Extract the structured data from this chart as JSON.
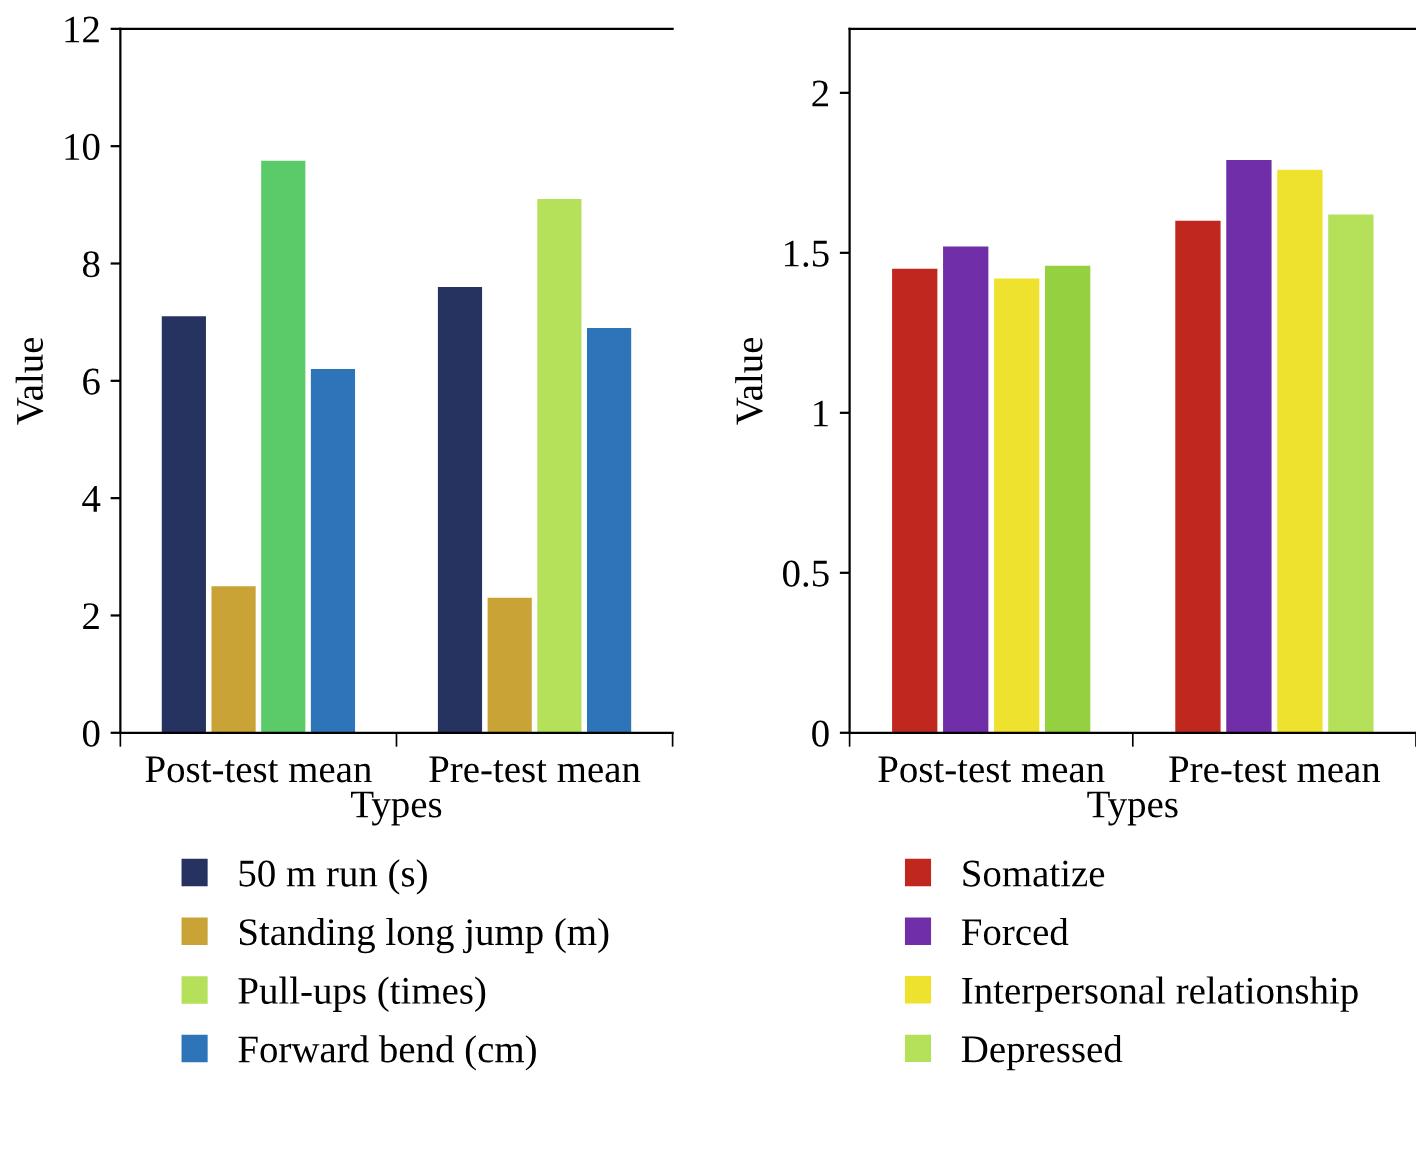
{
  "chart_data": [
    {
      "type": "bar",
      "xlabel": "Types",
      "ylabel": "Value",
      "categories": [
        "Post-test mean",
        "Pre-test mean"
      ],
      "ylim": [
        0,
        12
      ],
      "yticks": [
        0,
        2,
        4,
        6,
        8,
        10,
        12
      ],
      "legend": "bottom",
      "grid": false,
      "series": [
        {
          "name": "50 m run (s)",
          "color": "#263260",
          "values": [
            7.1,
            7.6
          ]
        },
        {
          "name": "Standing long jump (m)",
          "color": "#c9a335",
          "values": [
            2.5,
            2.3
          ]
        },
        {
          "name": "Pull-ups (times)",
          "color": "#b4e05a",
          "colors": [
            "#5bcb6a",
            "#b4e05a"
          ],
          "values": [
            9.75,
            9.1
          ]
        },
        {
          "name": "Forward bend (cm)",
          "color": "#2e74b8",
          "values": [
            6.2,
            6.9
          ]
        }
      ]
    },
    {
      "type": "bar",
      "xlabel": "Types",
      "ylabel": "Value",
      "categories": [
        "Post-test mean",
        "Pre-test mean"
      ],
      "ylim": [
        0,
        2.2
      ],
      "yticks": [
        0,
        0.5,
        1,
        1.5,
        2
      ],
      "legend": "bottom",
      "grid": false,
      "series": [
        {
          "name": "Somatize",
          "color": "#c0271f",
          "values": [
            1.45,
            1.6
          ]
        },
        {
          "name": "Forced",
          "color": "#702ea8",
          "values": [
            1.52,
            1.79
          ]
        },
        {
          "name": "Interpersonal relationship",
          "color": "#eee22e",
          "values": [
            1.42,
            1.76
          ]
        },
        {
          "name": "Depressed",
          "color": "#b4e05a",
          "colors": [
            "#94d040",
            "#b4e05a"
          ],
          "values": [
            1.46,
            1.62
          ]
        }
      ]
    }
  ]
}
